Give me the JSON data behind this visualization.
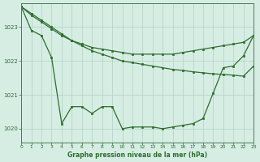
{
  "title": "Graphe pression niveau de la mer (hPa)",
  "bg_color": "#d6ede4",
  "grid_color": "#b8d4c8",
  "line_color": "#2d6e2d",
  "xlim": [
    0,
    23
  ],
  "ylim": [
    1019.6,
    1023.7
  ],
  "yticks": [
    1020,
    1021,
    1022,
    1023
  ],
  "xticks": [
    0,
    1,
    2,
    3,
    4,
    5,
    6,
    7,
    8,
    9,
    10,
    11,
    12,
    13,
    14,
    15,
    16,
    17,
    18,
    19,
    20,
    21,
    22,
    23
  ],
  "series1_x": [
    0,
    1,
    2,
    3,
    4,
    5,
    6,
    7,
    8,
    9,
    10,
    11,
    12,
    13,
    14,
    15,
    16,
    17,
    18,
    19,
    20,
    21,
    22,
    23
  ],
  "series1_y": [
    1023.6,
    1022.9,
    1022.75,
    1022.1,
    1020.15,
    1020.65,
    1020.65,
    1020.45,
    1020.65,
    1020.65,
    1020.0,
    1020.05,
    1020.05,
    1020.05,
    1020.0,
    1020.05,
    1020.1,
    1020.15,
    1020.3,
    1021.05,
    1021.8,
    1021.85,
    1022.15,
    1022.75
  ],
  "series2_x": [
    0,
    1,
    2,
    3,
    4,
    5,
    6,
    7,
    8,
    9,
    10,
    11,
    12,
    13,
    14,
    15,
    16,
    17,
    18,
    19,
    20,
    21,
    22,
    23
  ],
  "series2_y": [
    1023.6,
    1023.35,
    1023.15,
    1022.95,
    1022.75,
    1022.6,
    1022.45,
    1022.3,
    1022.2,
    1022.1,
    1022.0,
    1021.95,
    1021.9,
    1021.85,
    1021.8,
    1021.75,
    1021.72,
    1021.68,
    1021.65,
    1021.62,
    1021.6,
    1021.58,
    1021.55,
    1021.85
  ],
  "series3_x": [
    0,
    1,
    2,
    3,
    4,
    5,
    6,
    7,
    8,
    9,
    10,
    11,
    12,
    13,
    14,
    15,
    16,
    17,
    18,
    19,
    20,
    21,
    22,
    23
  ],
  "series3_y": [
    1023.6,
    1023.4,
    1023.2,
    1023.0,
    1022.8,
    1022.6,
    1022.5,
    1022.4,
    1022.35,
    1022.3,
    1022.25,
    1022.2,
    1022.2,
    1022.2,
    1022.2,
    1022.2,
    1022.25,
    1022.3,
    1022.35,
    1022.4,
    1022.45,
    1022.5,
    1022.55,
    1022.75
  ]
}
